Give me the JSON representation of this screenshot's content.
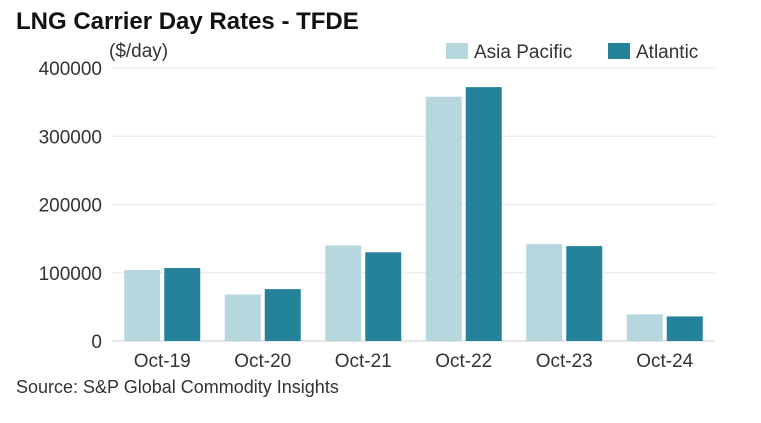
{
  "chart_data": {
    "type": "bar",
    "title": "LNG Carrier Day Rates - TFDE",
    "ylabel": "($/day)",
    "xlabel": "",
    "categories": [
      "Oct-19",
      "Oct-20",
      "Oct-21",
      "Oct-22",
      "Oct-23",
      "Oct-24"
    ],
    "series": [
      {
        "name": "Asia Pacific",
        "color": "#b7d7de",
        "values": [
          104000,
          68000,
          140000,
          358000,
          142000,
          39000
        ]
      },
      {
        "name": "Atlantic",
        "color": "#25829b",
        "values": [
          107000,
          76000,
          130000,
          372000,
          139000,
          36000
        ]
      }
    ],
    "ylim": [
      0,
      400000
    ],
    "yticks": [
      0,
      100000,
      200000,
      300000,
      400000
    ],
    "grid": true,
    "legend_position": "top-right",
    "source": "Source: S&P Global Commodity Insights"
  }
}
